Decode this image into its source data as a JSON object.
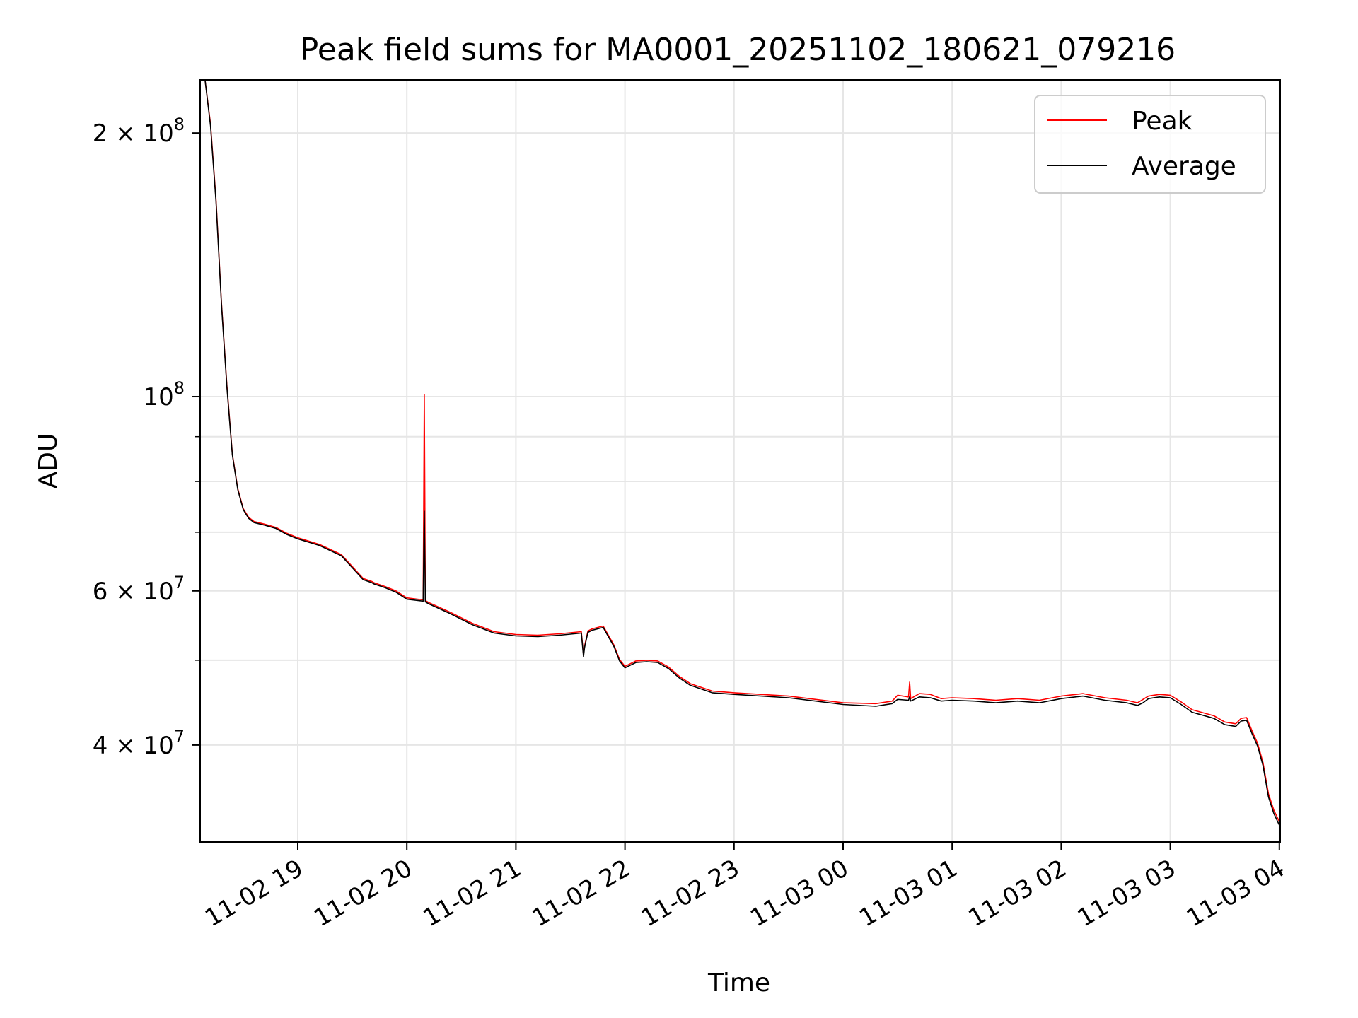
{
  "chart_data": {
    "type": "line",
    "title": "Peak field sums for MA0001_20251102_180621_079216",
    "xlabel": "Time",
    "ylabel": "ADU",
    "yscale": "log",
    "ylim": [
      31000000,
      230000000
    ],
    "xlim_hours": [
      -0.9,
      9.0
    ],
    "grid": true,
    "legend_position": "upper-right",
    "x_ticks": [
      {
        "hour": 0,
        "label": "11-02 19"
      },
      {
        "hour": 1,
        "label": "11-02 20"
      },
      {
        "hour": 2,
        "label": "11-02 21"
      },
      {
        "hour": 3,
        "label": "11-02 22"
      },
      {
        "hour": 4,
        "label": "11-02 23"
      },
      {
        "hour": 5,
        "label": "11-03 00"
      },
      {
        "hour": 6,
        "label": "11-03 01"
      },
      {
        "hour": 7,
        "label": "11-03 02"
      },
      {
        "hour": 8,
        "label": "11-03 03"
      },
      {
        "hour": 9,
        "label": "11-03 04"
      }
    ],
    "y_ticks": [
      {
        "value": 40000000,
        "mantissa": "4",
        "exponent": "7",
        "style": "sci"
      },
      {
        "value": 60000000,
        "mantissa": "6",
        "exponent": "7",
        "style": "sci"
      },
      {
        "value": 100000000,
        "mantissa": "",
        "exponent": "8",
        "style": "pow"
      },
      {
        "value": 200000000,
        "mantissa": "2",
        "exponent": "8",
        "style": "sci"
      }
    ],
    "y_minor_ticks": [
      50000000,
      70000000,
      80000000,
      90000000
    ],
    "series": [
      {
        "name": "Peak",
        "color": "#ff0000",
        "x": [
          -0.9,
          -0.85,
          -0.8,
          -0.75,
          -0.7,
          -0.65,
          -0.6,
          -0.55,
          -0.5,
          -0.45,
          -0.4,
          -0.3,
          -0.2,
          -0.1,
          0.0,
          0.2,
          0.4,
          0.6,
          0.68,
          0.7,
          0.8,
          0.9,
          1.0,
          1.15,
          1.16,
          1.17,
          1.2,
          1.4,
          1.6,
          1.8,
          2.0,
          2.2,
          2.4,
          2.6,
          2.62,
          2.63,
          2.66,
          2.7,
          2.8,
          2.9,
          2.95,
          3.0,
          3.1,
          3.2,
          3.3,
          3.4,
          3.5,
          3.6,
          3.8,
          4.0,
          4.5,
          5.0,
          5.3,
          5.45,
          5.5,
          5.6,
          5.61,
          5.62,
          5.7,
          5.8,
          5.9,
          6.0,
          6.2,
          6.4,
          6.6,
          6.8,
          7.0,
          7.2,
          7.4,
          7.6,
          7.7,
          7.75,
          7.8,
          7.9,
          8.0,
          8.1,
          8.2,
          8.4,
          8.5,
          8.6,
          8.65,
          8.7,
          8.75,
          8.8,
          8.85,
          8.9,
          8.95,
          9.0
        ],
        "values": [
          230000000,
          230000000,
          205000000,
          168000000,
          128000000,
          103000000,
          86000000,
          78500000,
          74500000,
          72800000,
          72000000,
          71500000,
          70900000,
          69800000,
          69000000,
          67800000,
          66000000,
          62000000,
          61500000,
          61300000,
          60700000,
          60000000,
          58900000,
          58600000,
          100500000,
          58500000,
          58200000,
          56700000,
          55100000,
          53900000,
          53500000,
          53400000,
          53600000,
          53900000,
          50700000,
          51900000,
          54000000,
          54300000,
          54700000,
          52000000,
          50100000,
          49200000,
          49900000,
          50000000,
          49900000,
          49100000,
          47900000,
          47000000,
          46100000,
          45900000,
          45500000,
          44700000,
          44600000,
          44900000,
          45600000,
          45400000,
          47200000,
          45200000,
          45800000,
          45700000,
          45200000,
          45300000,
          45200000,
          45000000,
          45200000,
          45000000,
          45500000,
          45800000,
          45300000,
          45000000,
          44700000,
          45100000,
          45500000,
          45700000,
          45600000,
          44800000,
          43900000,
          43200000,
          42500000,
          42300000,
          42900000,
          43000000,
          41500000,
          40200000,
          38200000,
          35200000,
          33700000,
          32700000
        ]
      },
      {
        "name": "Average",
        "color": "#000000",
        "x": [
          -0.9,
          -0.85,
          -0.8,
          -0.75,
          -0.7,
          -0.65,
          -0.6,
          -0.55,
          -0.5,
          -0.45,
          -0.4,
          -0.3,
          -0.2,
          -0.1,
          0.0,
          0.2,
          0.4,
          0.6,
          0.68,
          0.7,
          0.8,
          0.9,
          1.0,
          1.15,
          1.16,
          1.17,
          1.2,
          1.4,
          1.6,
          1.8,
          2.0,
          2.2,
          2.4,
          2.6,
          2.62,
          2.63,
          2.66,
          2.7,
          2.8,
          2.9,
          2.95,
          3.0,
          3.1,
          3.2,
          3.3,
          3.4,
          3.5,
          3.6,
          3.8,
          4.0,
          4.5,
          5.0,
          5.3,
          5.45,
          5.5,
          5.6,
          5.61,
          5.62,
          5.7,
          5.8,
          5.9,
          6.0,
          6.2,
          6.4,
          6.6,
          6.8,
          7.0,
          7.2,
          7.4,
          7.6,
          7.7,
          7.75,
          7.8,
          7.9,
          8.0,
          8.1,
          8.2,
          8.4,
          8.5,
          8.6,
          8.65,
          8.7,
          8.75,
          8.8,
          8.85,
          8.9,
          8.95,
          9.0
        ],
        "values": [
          230000000,
          230000000,
          204000000,
          167000000,
          127500000,
          102500000,
          85800000,
          78300000,
          74300000,
          72600000,
          71800000,
          71300000,
          70700000,
          69600000,
          68800000,
          67600000,
          65800000,
          61800000,
          61300000,
          61100000,
          60500000,
          59800000,
          58700000,
          58400000,
          74000000,
          58300000,
          58000000,
          56500000,
          54900000,
          53700000,
          53300000,
          53200000,
          53400000,
          53700000,
          50500000,
          51700000,
          53800000,
          54100000,
          54500000,
          51800000,
          49900000,
          49000000,
          49700000,
          49800000,
          49700000,
          48900000,
          47700000,
          46800000,
          45900000,
          45700000,
          45300000,
          44500000,
          44300000,
          44600000,
          45100000,
          45000000,
          45400000,
          44900000,
          45400000,
          45300000,
          44900000,
          45000000,
          44900000,
          44700000,
          44900000,
          44700000,
          45200000,
          45500000,
          45000000,
          44700000,
          44400000,
          44700000,
          45200000,
          45400000,
          45300000,
          44500000,
          43600000,
          42900000,
          42200000,
          42000000,
          42600000,
          42700000,
          41200000,
          39900000,
          37900000,
          34900000,
          33400000,
          32400000
        ]
      }
    ]
  }
}
